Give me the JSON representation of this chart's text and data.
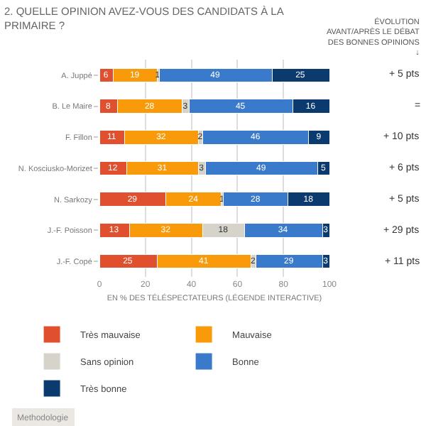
{
  "chart_data": {
    "type": "bar",
    "orientation": "horizontal",
    "stacked": true,
    "title": "2. QUELLE OPINION AVEZ-VOUS DES CANDIDATS À LA PRIMAIRE ?",
    "xlabel": "EN % DES TÉLÉSPECTATEURS (LÉGENDE INTERACTIVE)",
    "categories": [
      "A. Juppé",
      "B. Le Maire",
      "F. Fillon",
      "N. Kosciusko-Morizet",
      "N. Sarkozy",
      "J.-F. Poisson",
      "J.-F. Copé"
    ],
    "series": [
      {
        "name": "Très mauvaise",
        "color": "#e0502f",
        "values": [
          6,
          8,
          11,
          12,
          29,
          13,
          25
        ]
      },
      {
        "name": "Mauvaise",
        "color": "#f99a0b",
        "values": [
          19,
          28,
          32,
          31,
          24,
          32,
          41
        ]
      },
      {
        "name": "Sans opinion",
        "color": "#d6d3cb",
        "values": [
          1,
          3,
          2,
          3,
          1,
          18,
          2
        ]
      },
      {
        "name": "Bonne",
        "color": "#3a7acb",
        "values": [
          49,
          45,
          46,
          49,
          28,
          34,
          29
        ]
      },
      {
        "name": "Très bonne",
        "color": "#0b3a6e",
        "values": [
          25,
          16,
          9,
          5,
          18,
          3,
          3
        ]
      }
    ],
    "xlim": [
      0,
      100
    ],
    "xticks": [
      0,
      20,
      40,
      60,
      80,
      100
    ],
    "grid": "x",
    "legend": "bottom",
    "data_labels": true,
    "annotations": [
      "ÉVOLUTION AVANT/APRÈS LE DÉBAT DES BONNES OPINIONS ↓",
      "+ 5 pts",
      "=",
      "+ 10 pts",
      "+ 6 pts",
      "+ 5 pts",
      "+ 29 pts",
      "+ 11 pts",
      "Methodologie"
    ]
  }
}
